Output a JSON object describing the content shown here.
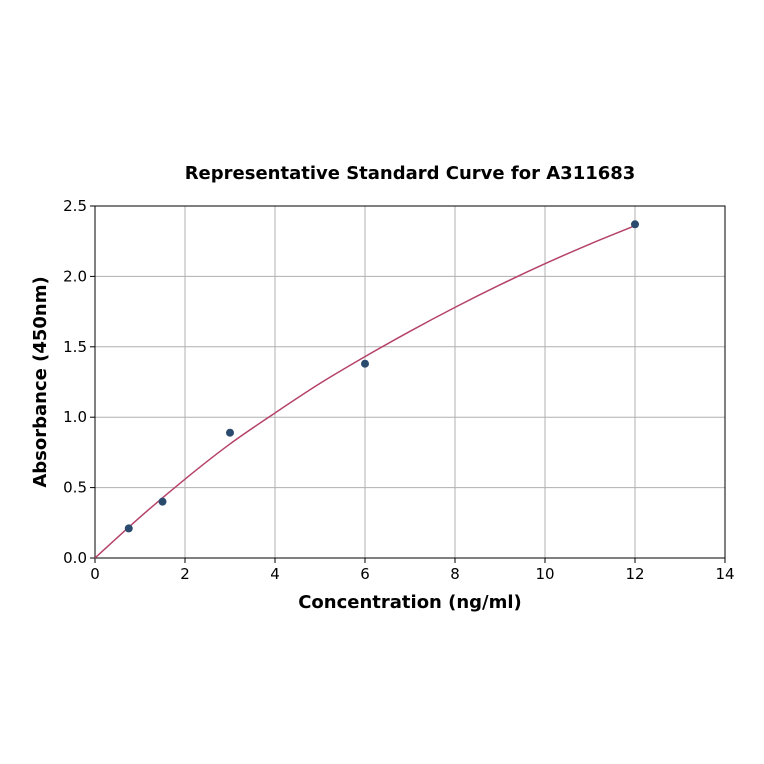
{
  "chart_data": {
    "type": "scatter",
    "title": "Representative Standard Curve for A311683",
    "xlabel": "Concentration (ng/ml)",
    "ylabel": "Absorbance (450nm)",
    "xlim": [
      0,
      14
    ],
    "ylim": [
      0,
      2.5
    ],
    "xticks": [
      "0",
      "2",
      "4",
      "6",
      "8",
      "10",
      "12",
      "14"
    ],
    "yticks": [
      "0.0",
      "0.5",
      "1.0",
      "1.5",
      "2.0",
      "2.5"
    ],
    "grid": true,
    "points": [
      {
        "x": 0.75,
        "y": 0.21
      },
      {
        "x": 1.5,
        "y": 0.4
      },
      {
        "x": 3,
        "y": 0.89
      },
      {
        "x": 6,
        "y": 1.38
      },
      {
        "x": 12,
        "y": 2.37
      }
    ],
    "fit_curve": [
      {
        "x": 0,
        "y": 0.0
      },
      {
        "x": 1,
        "y": 0.29
      },
      {
        "x": 2,
        "y": 0.56
      },
      {
        "x": 3,
        "y": 0.81
      },
      {
        "x": 4,
        "y": 1.03
      },
      {
        "x": 5,
        "y": 1.24
      },
      {
        "x": 6,
        "y": 1.43
      },
      {
        "x": 7,
        "y": 1.61
      },
      {
        "x": 8,
        "y": 1.78
      },
      {
        "x": 9,
        "y": 1.94
      },
      {
        "x": 10,
        "y": 2.09
      },
      {
        "x": 11,
        "y": 2.23
      },
      {
        "x": 12,
        "y": 2.36
      }
    ],
    "colors": {
      "points": "#2a4a6e",
      "curve": "#b5426a",
      "grid": "#b0b0b0"
    }
  }
}
